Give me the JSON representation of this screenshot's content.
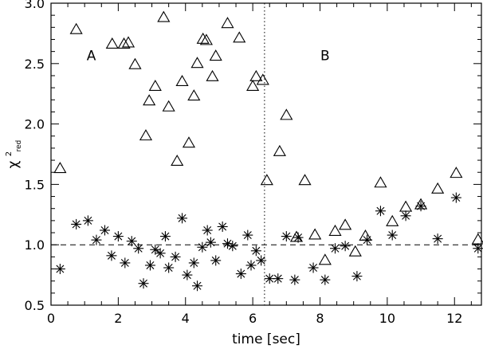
{
  "chart_data": {
    "type": "scatter",
    "title": "",
    "xlabel": "time [sec]",
    "ylabel_main": "χ",
    "ylabel_sup": "2",
    "ylabel_sub": "red",
    "xlim": [
      0,
      12.8
    ],
    "ylim": [
      0.5,
      3.0
    ],
    "xticks": [
      0,
      2,
      4,
      6,
      8,
      10,
      12
    ],
    "yticks": [
      0.5,
      1.0,
      1.5,
      2.0,
      2.5,
      3.0
    ],
    "ytick_labels": [
      "0.5",
      "1.0",
      "1.5",
      "2.0",
      "2.5",
      "3.0"
    ],
    "reference_line_y": 1.0,
    "divider_x": 6.35,
    "annotations": [
      {
        "text": "A",
        "x": 1.2,
        "y": 2.53
      },
      {
        "text": "B",
        "x": 8.15,
        "y": 2.53
      }
    ],
    "series": [
      {
        "marker": "triangle",
        "points": [
          [
            0.27,
            1.63
          ],
          [
            0.75,
            2.78
          ],
          [
            1.82,
            2.66
          ],
          [
            2.17,
            2.66
          ],
          [
            2.3,
            2.67
          ],
          [
            2.5,
            2.49
          ],
          [
            2.82,
            1.9
          ],
          [
            2.92,
            2.19
          ],
          [
            3.1,
            2.31
          ],
          [
            3.35,
            2.88
          ],
          [
            3.5,
            2.14
          ],
          [
            3.75,
            1.69
          ],
          [
            3.9,
            2.35
          ],
          [
            4.1,
            1.84
          ],
          [
            4.25,
            2.23
          ],
          [
            4.35,
            2.5
          ],
          [
            4.52,
            2.7
          ],
          [
            4.62,
            2.69
          ],
          [
            4.8,
            2.39
          ],
          [
            4.9,
            2.56
          ],
          [
            5.25,
            2.83
          ],
          [
            5.6,
            2.71
          ],
          [
            6.0,
            2.31
          ],
          [
            6.1,
            2.39
          ],
          [
            6.3,
            2.36
          ],
          [
            6.42,
            1.53
          ],
          [
            6.8,
            1.77
          ],
          [
            7.0,
            2.07
          ],
          [
            7.3,
            1.06
          ],
          [
            7.55,
            1.53
          ],
          [
            7.85,
            1.08
          ],
          [
            8.15,
            0.87
          ],
          [
            8.45,
            1.11
          ],
          [
            8.75,
            1.16
          ],
          [
            9.05,
            0.94
          ],
          [
            9.35,
            1.07
          ],
          [
            9.8,
            1.51
          ],
          [
            10.15,
            1.19
          ],
          [
            10.55,
            1.31
          ],
          [
            11.0,
            1.33
          ],
          [
            11.5,
            1.46
          ],
          [
            12.05,
            1.59
          ],
          [
            12.7,
            1.04
          ]
        ]
      },
      {
        "marker": "asterisk",
        "points": [
          [
            0.27,
            0.8
          ],
          [
            0.75,
            1.17
          ],
          [
            1.1,
            1.2
          ],
          [
            1.35,
            1.04
          ],
          [
            1.6,
            1.12
          ],
          [
            1.8,
            0.91
          ],
          [
            2.0,
            1.07
          ],
          [
            2.2,
            0.85
          ],
          [
            2.4,
            1.03
          ],
          [
            2.6,
            0.97
          ],
          [
            2.75,
            0.68
          ],
          [
            2.95,
            0.83
          ],
          [
            3.1,
            0.96
          ],
          [
            3.25,
            0.93
          ],
          [
            3.4,
            1.07
          ],
          [
            3.5,
            0.81
          ],
          [
            3.7,
            0.9
          ],
          [
            3.9,
            1.22
          ],
          [
            4.05,
            0.75
          ],
          [
            4.25,
            0.85
          ],
          [
            4.35,
            0.66
          ],
          [
            4.5,
            0.98
          ],
          [
            4.65,
            1.12
          ],
          [
            4.75,
            1.02
          ],
          [
            4.9,
            0.87
          ],
          [
            5.1,
            1.15
          ],
          [
            5.25,
            1.01
          ],
          [
            5.4,
            0.99
          ],
          [
            5.65,
            0.76
          ],
          [
            5.85,
            1.08
          ],
          [
            5.95,
            0.83
          ],
          [
            6.1,
            0.95
          ],
          [
            6.25,
            0.87
          ],
          [
            6.5,
            0.72
          ],
          [
            6.75,
            0.72
          ],
          [
            7.0,
            1.07
          ],
          [
            7.25,
            0.71
          ],
          [
            7.35,
            1.06
          ],
          [
            7.8,
            0.81
          ],
          [
            8.15,
            0.71
          ],
          [
            8.45,
            0.97
          ],
          [
            8.75,
            0.99
          ],
          [
            9.1,
            0.74
          ],
          [
            9.4,
            1.04
          ],
          [
            9.8,
            1.28
          ],
          [
            10.15,
            1.08
          ],
          [
            10.55,
            1.24
          ],
          [
            11.0,
            1.32
          ],
          [
            11.5,
            1.05
          ],
          [
            12.05,
            1.39
          ],
          [
            12.7,
            0.97
          ]
        ]
      }
    ]
  }
}
